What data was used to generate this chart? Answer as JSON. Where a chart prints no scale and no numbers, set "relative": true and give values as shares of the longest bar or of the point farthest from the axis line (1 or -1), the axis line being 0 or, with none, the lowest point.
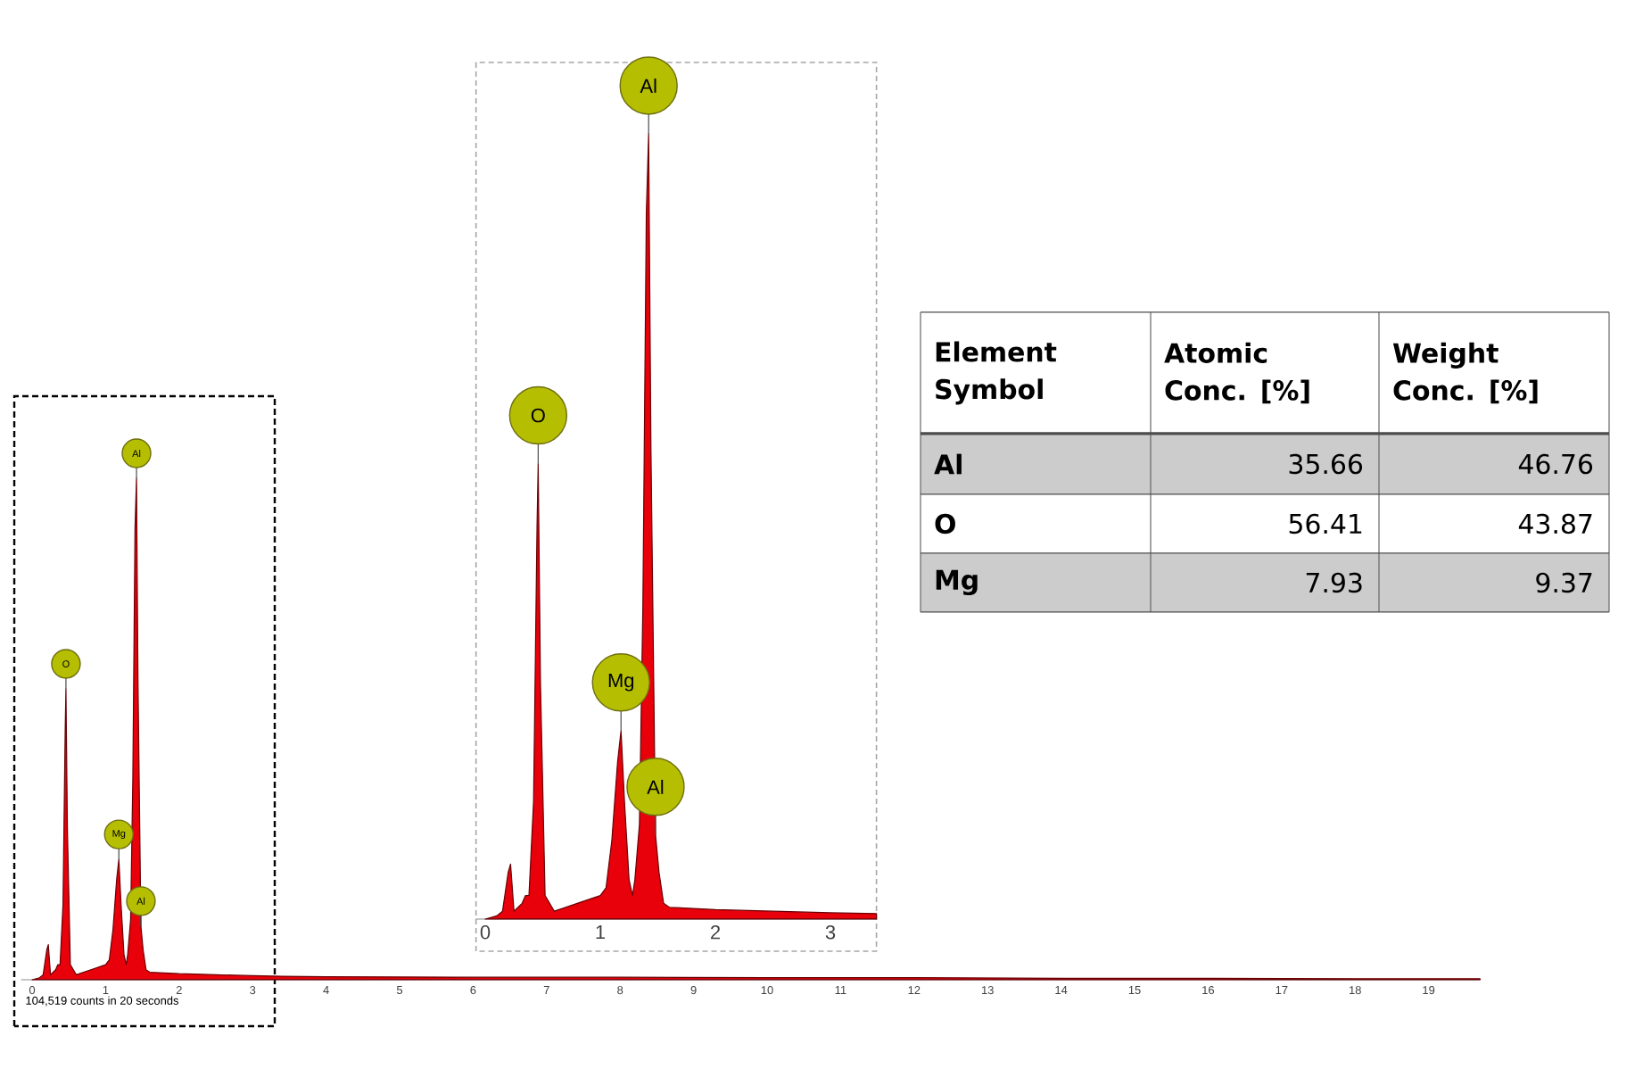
{
  "chart_data": [
    {
      "type": "area",
      "relative": true,
      "tick_labels": "x",
      "xlim": [
        -0.15,
        19.7
      ],
      "xticks": [
        0,
        1,
        2,
        3,
        4,
        5,
        6,
        7,
        8,
        9,
        10,
        11,
        12,
        13,
        14,
        15,
        16,
        17,
        18,
        19
      ],
      "series": [
        {
          "color": "#e8000a",
          "x": [
            0,
            0.1,
            0.15,
            0.2,
            0.22,
            0.25,
            0.32,
            0.35,
            0.38,
            0.42,
            0.45,
            0.46,
            0.48,
            0.52,
            0.6,
            0.8,
            1.0,
            1.05,
            1.1,
            1.15,
            1.18,
            1.21,
            1.25,
            1.28,
            1.3,
            1.34,
            1.37,
            1.4,
            1.42,
            1.44,
            1.48,
            1.51,
            1.55,
            1.6,
            2,
            2.5,
            3,
            3.4,
            4,
            6,
            8,
            10,
            12,
            14,
            16,
            18,
            19.7
          ],
          "values": [
            0,
            0.004,
            0.01,
            0.06,
            0.07,
            0.01,
            0.02,
            0.03,
            0.03,
            0.15,
            0.5,
            0.58,
            0.3,
            0.03,
            0.01,
            0.02,
            0.03,
            0.04,
            0.1,
            0.2,
            0.24,
            0.15,
            0.05,
            0.03,
            0.05,
            0.12,
            0.4,
            0.9,
            1.0,
            0.6,
            0.107,
            0.06,
            0.02,
            0.015,
            0.012,
            0.01,
            0.008,
            0.007,
            0.006,
            0.005,
            0.005,
            0.004,
            0.004,
            0.003,
            0.003,
            0.002,
            0.002
          ]
        }
      ],
      "annotations": [
        {
          "text": "O",
          "x": 0.46,
          "y": 0.58
        },
        {
          "text": "Mg",
          "x": 1.18,
          "y": 0.24
        },
        {
          "text": "Al",
          "x": 1.42,
          "y": 1.0
        },
        {
          "text": "Al",
          "x": 1.48,
          "y": 0.107
        },
        "104,519 counts in 20 seconds"
      ]
    },
    {
      "type": "area",
      "relative": true,
      "tick_labels": "x",
      "xlim": [
        -0.08,
        3.4
      ],
      "xticks": [
        0,
        1,
        2,
        3
      ],
      "series": [
        {
          "color": "#e8000a",
          "x": [
            0,
            0.1,
            0.15,
            0.2,
            0.22,
            0.25,
            0.32,
            0.35,
            0.38,
            0.42,
            0.45,
            0.46,
            0.48,
            0.52,
            0.6,
            0.8,
            1.0,
            1.05,
            1.1,
            1.15,
            1.18,
            1.21,
            1.25,
            1.28,
            1.3,
            1.34,
            1.37,
            1.4,
            1.42,
            1.44,
            1.48,
            1.51,
            1.55,
            1.6,
            2,
            2.5,
            3,
            3.4
          ],
          "values": [
            0,
            0.004,
            0.01,
            0.06,
            0.07,
            0.01,
            0.02,
            0.03,
            0.03,
            0.15,
            0.5,
            0.58,
            0.3,
            0.03,
            0.01,
            0.02,
            0.03,
            0.04,
            0.1,
            0.2,
            0.24,
            0.15,
            0.05,
            0.03,
            0.05,
            0.12,
            0.4,
            0.9,
            1.0,
            0.6,
            0.107,
            0.06,
            0.02,
            0.015,
            0.012,
            0.01,
            0.008,
            0.007
          ]
        }
      ],
      "annotations": [
        {
          "text": "O",
          "x": 0.46,
          "y": 0.58
        },
        {
          "text": "Mg",
          "x": 1.18,
          "y": 0.24
        },
        {
          "text": "Al",
          "x": 1.42,
          "y": 1.0
        },
        {
          "text": "Al",
          "x": 1.48,
          "y": 0.107
        }
      ]
    },
    {
      "type": "other",
      "xlabel": "Element Symbol",
      "categories": [
        "Al",
        "O",
        "Mg"
      ],
      "data_labels": true,
      "series": [
        {
          "name": "Atomic Conc. [%]",
          "values": [
            35.66,
            56.41,
            7.93
          ]
        },
        {
          "name": "Weight Conc. [%]",
          "values": [
            46.76,
            43.87,
            9.37
          ]
        }
      ]
    }
  ]
}
